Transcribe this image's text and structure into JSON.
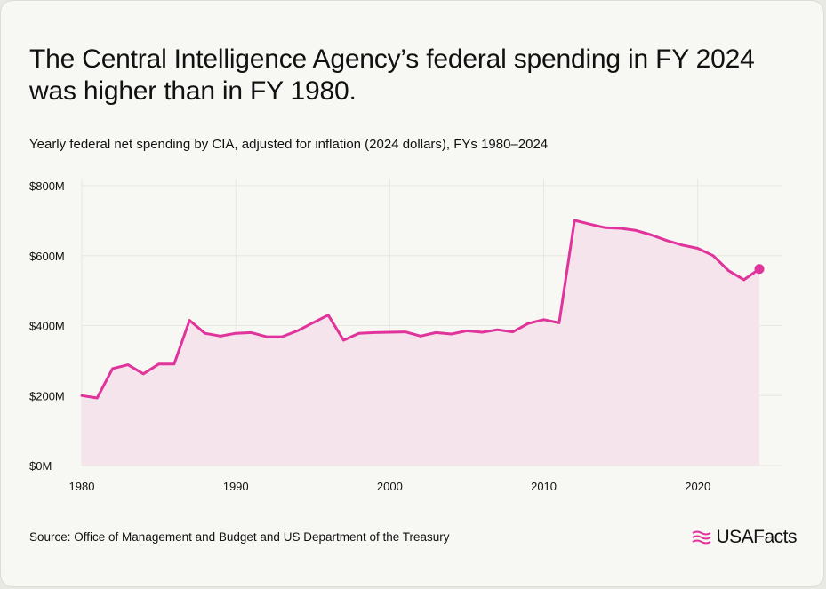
{
  "header": {
    "title": "The Central Intelligence Agency’s federal spending in FY 2024 was higher than in FY 1980.",
    "subtitle": "Yearly federal net spending by CIA, adjusted for inflation (2024 dollars), FYs 1980–2024"
  },
  "footer": {
    "source": "Source: Office of Management and Budget and US Department of the Treasury",
    "logo_text": "USAFacts"
  },
  "colors": {
    "line": "#e0339b",
    "area": "#f5e4ec",
    "grid": "#e7e7e2",
    "text": "#111111"
  },
  "chart_data": {
    "type": "area",
    "title": "The Central Intelligence Agency’s federal spending in FY 2024 was higher than in FY 1980.",
    "subtitle": "Yearly federal net spending by CIA, adjusted for inflation (2024 dollars), FYs 1980–2024",
    "xlabel": "",
    "ylabel": "",
    "x": [
      1980,
      1981,
      1982,
      1983,
      1984,
      1985,
      1986,
      1987,
      1988,
      1989,
      1990,
      1991,
      1992,
      1993,
      1994,
      1995,
      1996,
      1997,
      1998,
      1999,
      2000,
      2001,
      2002,
      2003,
      2004,
      2005,
      2006,
      2007,
      2008,
      2009,
      2010,
      2011,
      2012,
      2013,
      2014,
      2015,
      2016,
      2017,
      2018,
      2019,
      2020,
      2021,
      2022,
      2023,
      2024
    ],
    "series": [
      {
        "values": [
          200,
          193,
          277,
          288,
          262,
          290,
          290,
          415,
          378,
          370,
          378,
          380,
          368,
          368,
          385,
          408,
          430,
          358,
          378,
          380,
          381,
          382,
          370,
          380,
          376,
          385,
          381,
          388,
          382,
          406,
          417,
          408,
          701,
          690,
          680,
          678,
          672,
          659,
          643,
          630,
          621,
          600,
          557,
          531,
          562
        ]
      }
    ],
    "xlim": [
      1980,
      2025.5
    ],
    "ylim": [
      0,
      800
    ],
    "x_ticks": [
      1980,
      1990,
      2000,
      2010,
      2020
    ],
    "x_tick_labels": [
      "1980",
      "1990",
      "2000",
      "2010",
      "2020"
    ],
    "y_ticks": [
      0,
      200,
      400,
      600,
      800
    ],
    "y_tick_labels": [
      "$0M",
      "$200M",
      "$400M",
      "$600M",
      "$800M"
    ],
    "grid": true,
    "legend": "none",
    "endpoint_marker": true
  }
}
